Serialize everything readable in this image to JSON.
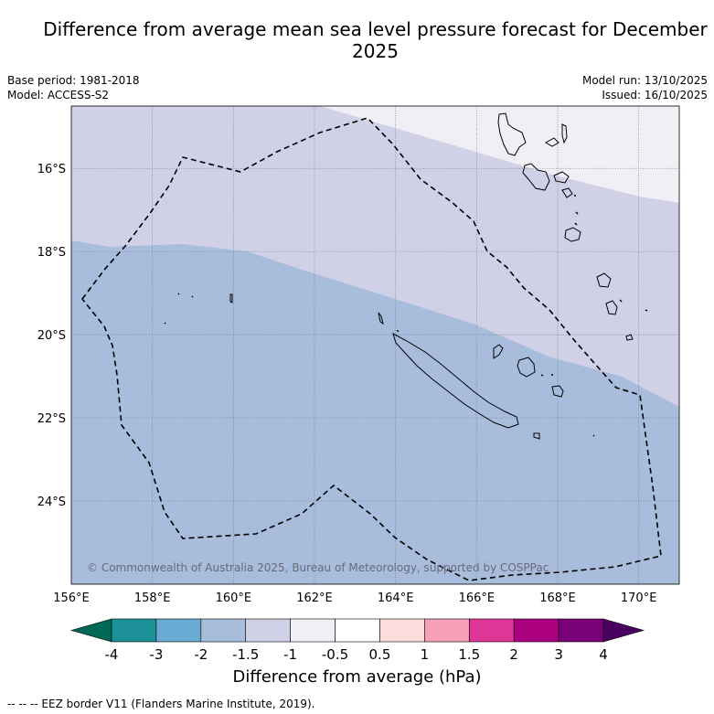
{
  "title": "Difference from average mean sea level pressure forecast for December 2025",
  "meta": {
    "base_period": "Base period: 1981-2018",
    "model": "Model: ACCESS-S2",
    "model_run": "Model run: 13/10/2025",
    "issued": "Issued: 16/10/2025"
  },
  "map": {
    "lon_range": [
      156,
      171
    ],
    "lat_range": [
      -26.0,
      -14.5
    ],
    "lon_ticks": [
      "156°E",
      "158°E",
      "160°E",
      "162°E",
      "164°E",
      "166°E",
      "168°E",
      "170°E"
    ],
    "lat_ticks": [
      "16°S",
      "18°S",
      "20°S",
      "22°S",
      "24°S"
    ],
    "copyright": "© Commonwealth of Australia 2025, Bureau of Meteorology, supported by COSPPac",
    "regions": [
      {
        "name": "-2 to -1.5 hPa",
        "color": "#a8bcdc"
      },
      {
        "name": "-1.5 to -1 hPa",
        "color": "#d0d0e6"
      },
      {
        "name": "-1 to -0.5 hPa",
        "color": "#f2eef6"
      }
    ]
  },
  "colorbar": {
    "xlabel": "Difference from average (hPa)",
    "labels": [
      "-4",
      "-3",
      "-2",
      "-1.5",
      "-1",
      "-0.5",
      "0.5",
      "1",
      "1.5",
      "2",
      "3",
      "4"
    ],
    "colors": [
      "#1b9096",
      "#69abd3",
      "#a8bcdc",
      "#d0d0e6",
      "#f2eef6",
      "#ffffff",
      "#fddcdc",
      "#f89fb9",
      "#de3696",
      "#ab0080",
      "#7a007a"
    ],
    "low_extend_color": "#006857",
    "high_extend_color": "#4a0060"
  },
  "footer": "--  --  -- EEZ border V11 (Flanders Marine Institute, 2019)."
}
